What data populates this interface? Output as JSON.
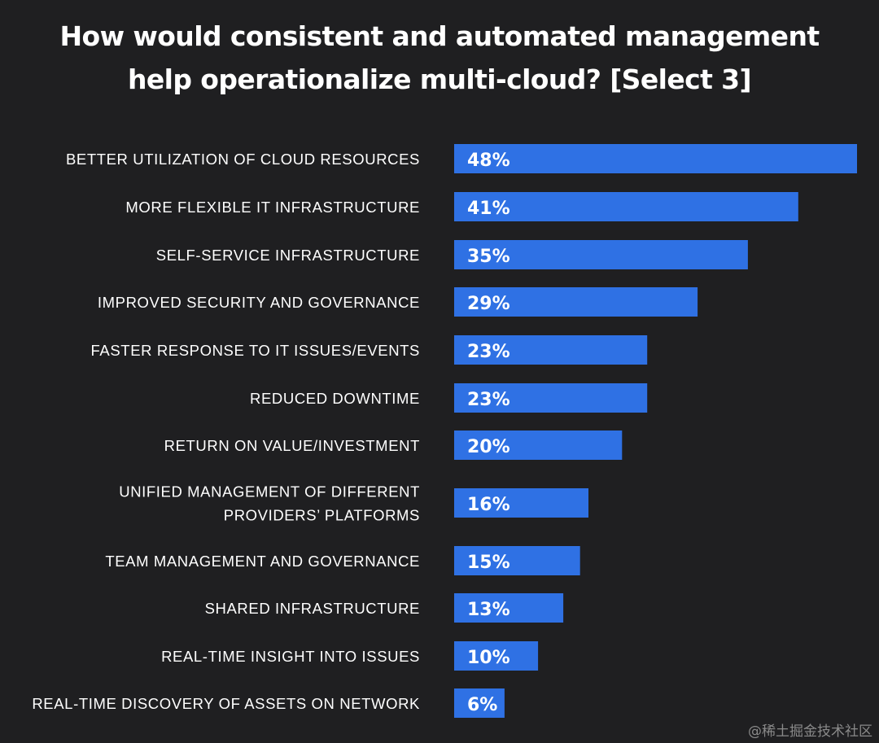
{
  "chart_data": {
    "type": "bar",
    "orientation": "horizontal",
    "title": "How would consistent and automated management help operationalize multi-cloud? [Select 3]",
    "title_lines": [
      "How would consistent and automated management",
      "help operationalize multi-cloud? [Select 3]"
    ],
    "categories": [
      [
        "BETTER UTILIZATION OF CLOUD RESOURCES"
      ],
      [
        "MORE FLEXIBLE IT INFRASTRUCTURE"
      ],
      [
        "SELF-SERVICE INFRASTRUCTURE"
      ],
      [
        "IMPROVED SECURITY AND GOVERNANCE"
      ],
      [
        "FASTER RESPONSE TO IT ISSUES/EVENTS"
      ],
      [
        "REDUCED DOWNTIME"
      ],
      [
        "RETURN ON VALUE/INVESTMENT"
      ],
      [
        "UNIFIED MANAGEMENT OF DIFFERENT",
        "PROVIDERS’ PLATFORMS"
      ],
      [
        "TEAM MANAGEMENT AND GOVERNANCE"
      ],
      [
        "SHARED INFRASTRUCTURE"
      ],
      [
        "REAL-TIME INSIGHT INTO ISSUES"
      ],
      [
        "REAL-TIME DISCOVERY OF ASSETS ON NETWORK"
      ]
    ],
    "values": [
      48,
      41,
      35,
      29,
      23,
      23,
      20,
      16,
      15,
      13,
      10,
      6
    ],
    "value_labels": [
      "48%",
      "41%",
      "35%",
      "29%",
      "23%",
      "23%",
      "20%",
      "16%",
      "15%",
      "13%",
      "10%",
      "6%"
    ],
    "xlim": [
      0,
      48
    ],
    "xlabel": "",
    "ylabel": "",
    "grid": false,
    "bar_color": "#2f71e4",
    "background_color": "#1f1f21"
  },
  "watermark": "@稀土掘金技术社区"
}
